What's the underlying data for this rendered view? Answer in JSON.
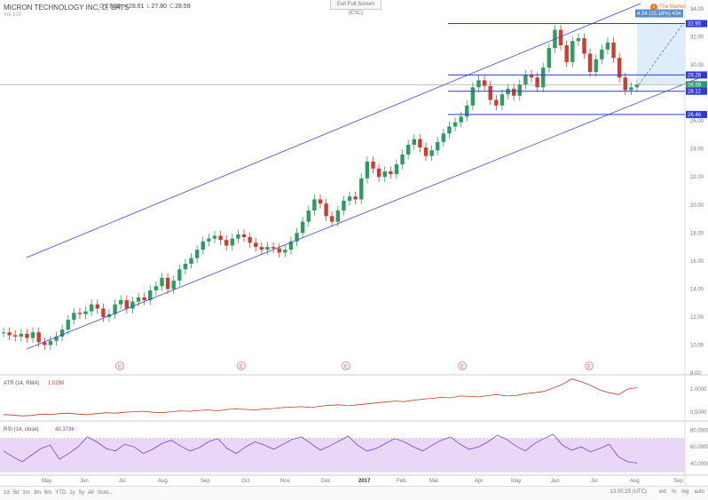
{
  "header": {
    "title": "MICRON TECHNOLOGY INC, D, BATS",
    "ohlc": [
      {
        "label": "O",
        "value": "27.93"
      },
      {
        "label": "H",
        "value": "28.61"
      },
      {
        "label": "L",
        "value": "27.80"
      },
      {
        "label": "C",
        "value": "28.59"
      }
    ],
    "volume_label": "Vol 100",
    "fullscreen_label": "Exit Full Screen (ESC)",
    "market_label": "The Market"
  },
  "chart_data": {
    "type": "candlestick",
    "x_axis_labels": [
      "May",
      "Jun",
      "Jul",
      "Aug",
      "Sep",
      "Oct",
      "Nov",
      "Dec",
      "2017",
      "Feb",
      "Mar",
      "Apr",
      "May",
      "Jun",
      "Jul",
      "Aug",
      "Sep"
    ],
    "y_axis_ticks": [
      "34.00",
      "32.00",
      "30.00",
      "28.00",
      "26.00",
      "24.00",
      "22.00",
      "20.00",
      "18.00",
      "16.00",
      "14.00",
      "12.00",
      "10.00",
      "8.00"
    ],
    "ylim": [
      8,
      34
    ],
    "price_levels": [
      {
        "value": "32.95",
        "color": "#2f3bd6"
      },
      {
        "value": "29.28",
        "color": "#2f3bd6"
      },
      {
        "value": "28.59",
        "color": "#2a9d63"
      },
      {
        "value": "28.12",
        "color": "#2f3bd6"
      },
      {
        "value": "26.46",
        "color": "#2f3bd6"
      }
    ],
    "projection_label": "4.34 (15.18%) 434",
    "series": [
      {
        "name": "price",
        "values": [
          10.9,
          10.7,
          10.6,
          10.8,
          10.5,
          10.9,
          10.2,
          10.0,
          10.3,
          10.6,
          11.1,
          11.8,
          12.3,
          12.2,
          12.4,
          12.9,
          12.6,
          12.0,
          12.2,
          12.9,
          13.2,
          12.6,
          13.1,
          13.4,
          13.2,
          13.9,
          14.2,
          14.8,
          14.0,
          14.6,
          15.4,
          15.8,
          16.2,
          16.8,
          17.4,
          17.6,
          17.8,
          17.5,
          17.1,
          17.6,
          17.9,
          17.7,
          17.3,
          17.0,
          16.8,
          17.0,
          16.9,
          16.6,
          16.8,
          17.4,
          18.0,
          18.8,
          19.6,
          20.4,
          20.1,
          19.2,
          18.8,
          19.6,
          20.3,
          20.6,
          20.4,
          21.9,
          23.1,
          22.6,
          22.0,
          22.4,
          22.2,
          22.9,
          23.6,
          24.3,
          24.7,
          24.1,
          23.5,
          23.9,
          24.5,
          25.1,
          25.6,
          25.9,
          26.3,
          27.1,
          28.4,
          28.9,
          28.5,
          27.5,
          27.1,
          27.9,
          28.3,
          27.8,
          28.6,
          29.3,
          29.1,
          28.4,
          29.8,
          31.2,
          32.5,
          31.4,
          30.2,
          31.7,
          31.9,
          30.8,
          29.5,
          30.4,
          31.1,
          31.6,
          30.5,
          29.1,
          28.2,
          28.4,
          28.59
        ]
      }
    ],
    "events": [
      "E",
      "E",
      "E",
      "E",
      "E"
    ],
    "annotations": [
      "4.34 (15.18%) 434"
    ]
  },
  "indicators": {
    "atr": {
      "title": "ATR (14, RMA)",
      "value": "1.0290",
      "ticks": [
        "1.0000",
        "0.5000"
      ],
      "values": [
        0.45,
        0.44,
        0.42,
        0.43,
        0.46,
        0.45,
        0.47,
        0.48,
        0.46,
        0.45,
        0.47,
        0.49,
        0.48,
        0.5,
        0.51,
        0.52,
        0.5,
        0.49,
        0.51,
        0.53,
        0.52,
        0.54,
        0.55,
        0.53,
        0.56,
        0.57,
        0.56,
        0.55,
        0.57,
        0.58,
        0.6,
        0.61,
        0.62,
        0.6,
        0.63,
        0.65,
        0.66,
        0.64,
        0.66,
        0.68,
        0.7,
        0.72,
        0.74,
        0.73,
        0.76,
        0.78,
        0.8,
        0.82,
        0.81,
        0.85,
        0.84,
        0.83,
        0.86,
        0.88,
        0.85,
        0.86,
        0.9,
        0.92,
        0.95,
        1.02,
        1.1,
        1.22,
        1.16,
        1.08,
        0.98,
        0.92,
        0.88,
        1.0,
        1.03
      ]
    },
    "rsi": {
      "title": "RSI (14, close)",
      "value": "40.3736",
      "ticks": [
        "80.0000",
        "60.0000",
        "40.0000"
      ],
      "values": [
        55,
        48,
        42,
        50,
        58,
        62,
        45,
        52,
        60,
        72,
        66,
        58,
        55,
        63,
        60,
        52,
        57,
        64,
        68,
        61,
        55,
        59,
        66,
        70,
        58,
        52,
        60,
        66,
        62,
        57,
        63,
        69,
        72,
        64,
        56,
        61,
        67,
        73,
        62,
        55,
        58,
        64,
        70,
        66,
        60,
        55,
        62,
        68,
        72,
        63,
        57,
        60,
        66,
        74,
        69,
        61,
        55,
        64,
        70,
        75,
        62,
        56,
        60,
        54,
        58,
        63,
        48,
        42,
        40.4
      ]
    },
    "event_label": "E"
  },
  "toolbar": {
    "ranges": [
      "1d",
      "5d",
      "1m",
      "3m",
      "6m",
      "YTD",
      "1y",
      "5y",
      "All",
      "Goto..."
    ],
    "time": "13:00:29 (UTC)",
    "options": [
      "ext",
      "%",
      "log",
      "auto"
    ]
  },
  "colors": {
    "up": "#2a9d63",
    "down": "#d33a2c",
    "channel": "#3b47d8",
    "atr": "#c0392b",
    "rsi": "#7d3ed1",
    "rsi_band": "#ead7f7",
    "projection": "#d6e8f8"
  }
}
